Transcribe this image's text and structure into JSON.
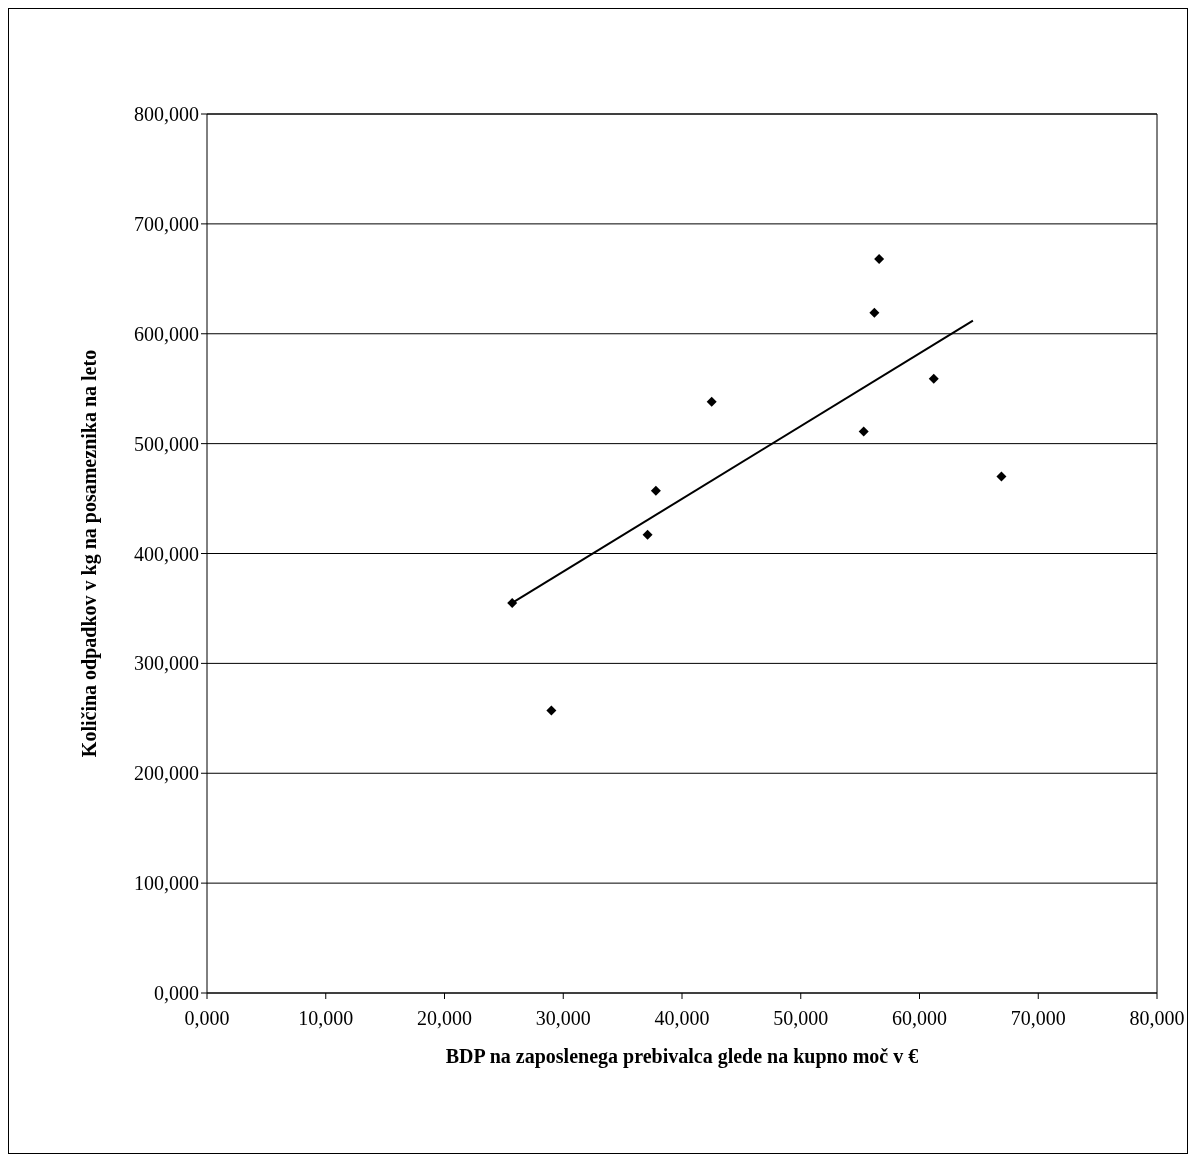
{
  "chart_data": {
    "type": "scatter",
    "xlabel": "BDP na zaposlenega prebivalca glede na kupno moč v  €",
    "ylabel": "Količina odpadkov v kg na posameznika na leto",
    "series": [
      {
        "color": "#000000",
        "marker": "diamond",
        "x": [
          25.7,
          29.0,
          37.1,
          37.8,
          42.5,
          55.3,
          56.2,
          56.6,
          61.2,
          66.9
        ],
        "values": [
          355,
          257,
          417,
          457,
          538,
          511,
          619,
          668,
          559,
          470
        ]
      },
      {
        "type": "line",
        "color": "#000000",
        "marker": "none",
        "x": [
          25.7,
          64.5
        ],
        "values": [
          355,
          612
        ]
      }
    ],
    "xlim": [
      0,
      80
    ],
    "ylim": [
      0,
      800
    ],
    "xticks": [
      {
        "value": 0,
        "label": "0,000"
      },
      {
        "value": 10,
        "label": "10,000"
      },
      {
        "value": 20,
        "label": "20,000"
      },
      {
        "value": 30,
        "label": "30,000"
      },
      {
        "value": 40,
        "label": "40,000"
      },
      {
        "value": 50,
        "label": "50,000"
      },
      {
        "value": 60,
        "label": "60,000"
      },
      {
        "value": 70,
        "label": "70,000"
      },
      {
        "value": 80,
        "label": "80,000"
      }
    ],
    "yticks": [
      {
        "value": 0,
        "label": "0,000"
      },
      {
        "value": 100,
        "label": "100,000"
      },
      {
        "value": 200,
        "label": "200,000"
      },
      {
        "value": 300,
        "label": "300,000"
      },
      {
        "value": 400,
        "label": "400,000"
      },
      {
        "value": 500,
        "label": "500,000"
      },
      {
        "value": 600,
        "label": "600,000"
      },
      {
        "value": 700,
        "label": "700,000"
      },
      {
        "value": 800,
        "label": "800,000"
      }
    ],
    "grid": "y",
    "legend": false
  }
}
